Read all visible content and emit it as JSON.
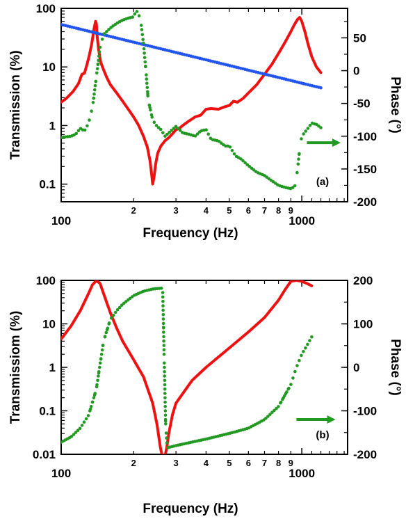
{
  "chart_data": [
    {
      "panel": "a",
      "type": "line",
      "panel_label": "(a)",
      "xlabel": "Frequency (Hz)",
      "ylabel_left": "Transmission (%)",
      "ylabel_right": "Phase (°)",
      "xscale": "log",
      "yscale_left": "log",
      "yscale_right": "linear",
      "xlim": [
        100,
        1550
      ],
      "ylim_left": [
        0.05,
        100
      ],
      "ylim_right": [
        -200,
        95
      ],
      "x_major_ticks": [
        {
          "v": 100,
          "label": "100"
        },
        {
          "v": 1000,
          "label": "1000"
        }
      ],
      "x_minor_ticks": [
        {
          "v": 200,
          "label": "2"
        },
        {
          "v": 300,
          "label": "3"
        },
        {
          "v": 400,
          "label": "4"
        },
        {
          "v": 500,
          "label": "5"
        },
        {
          "v": 600,
          "label": "6"
        },
        {
          "v": 700,
          "label": "7"
        },
        {
          "v": 800,
          "label": "8"
        },
        {
          "v": 900,
          "label": "9"
        }
      ],
      "y_left_ticks": [
        {
          "v": 0.1,
          "label": "0.1"
        },
        {
          "v": 1,
          "label": "1"
        },
        {
          "v": 10,
          "label": "10"
        },
        {
          "v": 100,
          "label": "100"
        }
      ],
      "y_right_ticks": [
        {
          "v": 50,
          "label": "50"
        },
        {
          "v": 0,
          "label": "0"
        },
        {
          "v": -50,
          "label": "-50"
        },
        {
          "v": -100,
          "label": "-100"
        },
        {
          "v": -150,
          "label": "-150"
        },
        {
          "v": -200,
          "label": "-200"
        }
      ],
      "phase_arrow": {
        "y": -110,
        "x_from": 1050,
        "x_to": 1450
      },
      "series": [
        {
          "axis": "left",
          "style": "line",
          "color": "#ee1111",
          "x": [
            100,
            105,
            112,
            118,
            122,
            125,
            128,
            131,
            134,
            137,
            139,
            140,
            141,
            143,
            146,
            150,
            155,
            160,
            170,
            180,
            190,
            200,
            210,
            220,
            228,
            234,
            238,
            240,
            243,
            247,
            252,
            260,
            270,
            280,
            290,
            300,
            310,
            320,
            340,
            360,
            380,
            400,
            420,
            450,
            480,
            500,
            520,
            540,
            570,
            600,
            650,
            700,
            750,
            800,
            850,
            900,
            930,
            960,
            980,
            1000,
            1030,
            1060,
            1100,
            1150,
            1200
          ],
          "y": [
            2.5,
            2.9,
            3.8,
            5.2,
            7.5,
            7.8,
            11,
            16,
            25,
            45,
            60,
            55,
            35,
            20,
            12,
            9,
            6.5,
            5,
            3.6,
            2.6,
            1.9,
            1.4,
            1.0,
            0.65,
            0.43,
            0.25,
            0.14,
            0.1,
            0.13,
            0.22,
            0.34,
            0.45,
            0.55,
            0.62,
            0.72,
            0.85,
            0.9,
            1.0,
            1.2,
            1.4,
            1.5,
            1.9,
            1.95,
            1.9,
            2.1,
            2.2,
            2.6,
            2.5,
            2.9,
            3.6,
            5,
            7.5,
            11,
            17,
            26,
            40,
            52,
            65,
            70,
            60,
            40,
            25,
            15,
            10,
            8
          ]
        },
        {
          "axis": "left",
          "style": "dotted",
          "color": "#2255ee",
          "x": [
            100,
            1200
          ],
          "y": [
            53,
            4.4
          ]
        },
        {
          "axis": "right",
          "style": "dotted",
          "color": "#229922",
          "x": [
            100,
            110,
            115,
            120,
            125,
            130,
            135,
            140,
            145,
            150,
            160,
            170,
            180,
            190,
            200,
            205,
            210,
            215,
            220,
            225,
            230,
            240,
            250,
            260,
            270,
            280,
            300,
            320,
            340,
            360,
            380,
            400,
            420,
            450,
            480,
            500,
            530,
            560,
            600,
            650,
            700,
            750,
            800,
            850,
            900,
            920,
            940,
            960,
            980,
            1000,
            1050,
            1100,
            1150,
            1200
          ],
          "y": [
            -102,
            -100,
            -97,
            -88,
            -92,
            -80,
            -55,
            -10,
            35,
            55,
            65,
            72,
            77,
            80,
            82,
            92,
            86,
            70,
            40,
            0,
            -45,
            -75,
            -85,
            -90,
            -100,
            -95,
            -85,
            -95,
            -97,
            -100,
            -92,
            -90,
            -105,
            -107,
            -115,
            -115,
            -130,
            -135,
            -145,
            -155,
            -160,
            -168,
            -175,
            -178,
            -180,
            -178,
            -175,
            -150,
            -120,
            -100,
            -90,
            -80,
            -82,
            -87
          ]
        }
      ]
    },
    {
      "panel": "b",
      "type": "line",
      "panel_label": "(b)",
      "xlabel": "Frequency (Hz)",
      "ylabel_left": "Transmissiom (%)",
      "ylabel_right": "Phase (°)",
      "xscale": "log",
      "yscale_left": "log",
      "yscale_right": "linear",
      "xlim": [
        100,
        1550
      ],
      "ylim_left": [
        0.01,
        100
      ],
      "ylim_right": [
        -200,
        200
      ],
      "x_major_ticks": [
        {
          "v": 100,
          "label": "100"
        },
        {
          "v": 1000,
          "label": "1000"
        }
      ],
      "x_minor_ticks": [
        {
          "v": 200,
          "label": "2"
        },
        {
          "v": 300,
          "label": "3"
        },
        {
          "v": 400,
          "label": "4"
        },
        {
          "v": 500,
          "label": "5"
        },
        {
          "v": 600,
          "label": "6"
        },
        {
          "v": 700,
          "label": "7"
        },
        {
          "v": 800,
          "label": "8"
        },
        {
          "v": 900,
          "label": "9"
        }
      ],
      "y_left_ticks": [
        {
          "v": 0.01,
          "label": "0.01"
        },
        {
          "v": 0.1,
          "label": "0.1"
        },
        {
          "v": 1,
          "label": "1"
        },
        {
          "v": 10,
          "label": "10"
        },
        {
          "v": 100,
          "label": "100"
        }
      ],
      "y_right_ticks": [
        {
          "v": 200,
          "label": "200"
        },
        {
          "v": 100,
          "label": "100"
        },
        {
          "v": 0,
          "label": "0"
        },
        {
          "v": -100,
          "label": "-100"
        },
        {
          "v": -200,
          "label": "-200"
        }
      ],
      "phase_arrow": {
        "y": -120,
        "x_from": 950,
        "x_to": 1380
      },
      "series": [
        {
          "axis": "left",
          "style": "line",
          "color": "#ee1111",
          "x": [
            100,
            110,
            120,
            130,
            135,
            140,
            145,
            150,
            160,
            170,
            180,
            200,
            220,
            240,
            250,
            258,
            262,
            265,
            270,
            275,
            280,
            290,
            300,
            350,
            400,
            500,
            600,
            700,
            800,
            850,
            900,
            950,
            1000,
            1050,
            1100
          ],
          "y": [
            4.5,
            9,
            20,
            50,
            80,
            98,
            85,
            50,
            18,
            8,
            4,
            1.5,
            0.6,
            0.15,
            0.05,
            0.015,
            0.01,
            0.008,
            0.009,
            0.015,
            0.03,
            0.08,
            0.15,
            0.5,
            1.0,
            2.8,
            6.5,
            14,
            35,
            60,
            95,
            100,
            95,
            85,
            75
          ]
        },
        {
          "axis": "right",
          "style": "dotted",
          "color": "#229922",
          "x": [
            100,
            110,
            120,
            130,
            140,
            150,
            160,
            170,
            180,
            200,
            220,
            240,
            260,
            264,
            268,
            272,
            276,
            290,
            300,
            400,
            500,
            600,
            700,
            800,
            900,
            950,
            1000,
            1050,
            1100
          ],
          "y": [
            -172,
            -160,
            -140,
            -110,
            -50,
            60,
            110,
            130,
            145,
            165,
            175,
            180,
            182,
            182,
            20,
            -140,
            -185,
            -182,
            -180,
            -165,
            -152,
            -140,
            -120,
            -90,
            -40,
            0,
            30,
            50,
            70
          ]
        }
      ]
    }
  ]
}
